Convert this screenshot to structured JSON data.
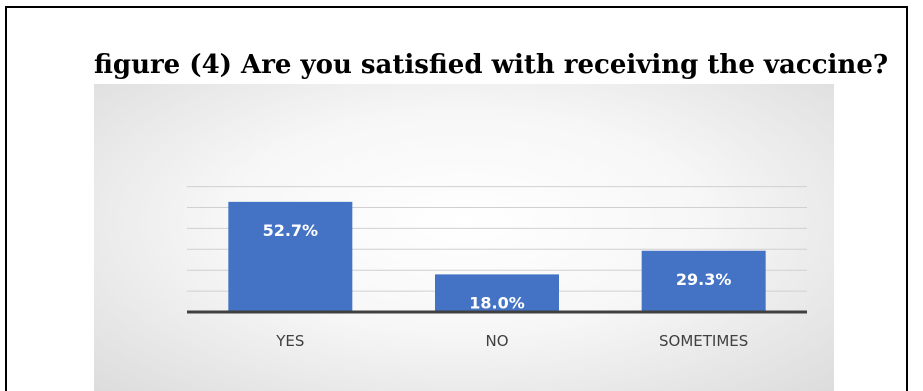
{
  "figure": {
    "caption": "figure (4) Are you satisfied with receiving the vaccine?"
  },
  "chart_data": {
    "type": "bar",
    "categories": [
      "YES",
      "NO",
      "SOMETIMES"
    ],
    "values": [
      52.7,
      18.0,
      29.3
    ],
    "value_labels": [
      "52.7%",
      "18.0%",
      "29.3%"
    ],
    "ylim": [
      0,
      60
    ],
    "grid": true,
    "legend": "none",
    "bar_color": "#4472C4"
  }
}
